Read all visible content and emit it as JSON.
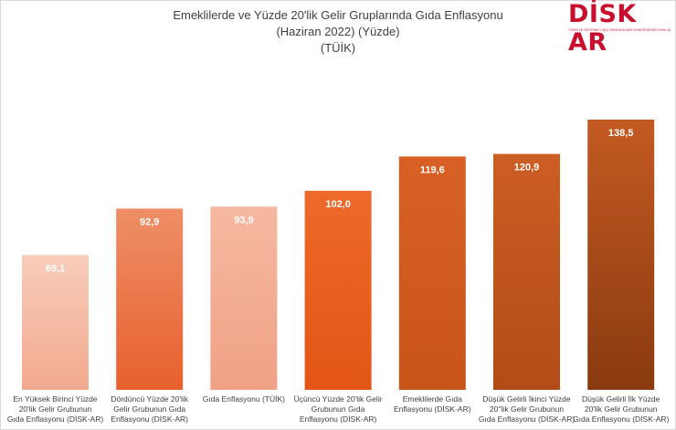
{
  "title_lines": [
    "Emeklilerde ve Yüzde 20'lik Gelir Gruplarında Gıda Enflasyonu",
    "(Haziran 2022) (Yüzde)",
    "(TÜİK)"
  ],
  "logo": {
    "word": "DİSK AR",
    "tagline": "TÜRKİYE DEVRİMCİ İŞÇİ SENDİKALARI KONFEDERASYONU ARAŞTIRMA MERKEZİ"
  },
  "chart_data": {
    "type": "bar",
    "title": "Emeklilerde ve Yüzde 20'lik Gelir Gruplarında Gıda Enflasyonu (Haziran 2022) (Yüzde) (TÜİK)",
    "categories": [
      "En Yüksek Birinci Yüzde 20'lik Gelir Grubunun Gıda Enflasyonu (DİSK-AR)",
      "Dördüncü Yüzde 20'lik Gelir Grubunun Gıda Enflasyonu (DİSK-AR)",
      "Gıda Enflasyonu (TÜİK)",
      "Üçüncü Yüzde 20'lik Gelir Grubunun Gıda Enflasyonu (DİSK-AR)",
      "Emeklilerde Gıda Enflasyonu (DİSK-AR)",
      "Düşük Gelirli İkinci Yüzde 20''lik Gelir Grubunun Gıda Enflasyonu (DİSK-AR)",
      "Düşük Gelirli İlk Yüzde 20'lik Gelir Grubunun Gıda Enflasyonu (DİSK-AR)"
    ],
    "category_lines": [
      [
        "En Yüksek Birinci Yüzde",
        "20'lik Gelir Grubunun",
        "Gıda Enflasyonu (DİSK-AR)"
      ],
      [
        "Dördüncü Yüzde 20'lik",
        "Gelir Grubunun Gıda",
        "Enflasyonu (DİSK-AR)"
      ],
      [
        "Gıda Enflasyonu (TÜİK)"
      ],
      [
        "Üçüncü Yüzde 20'lik Gelir",
        "Grubunun Gıda",
        "Enflasyonu (DİSK-AR)"
      ],
      [
        "Emeklilerde Gıda",
        "Enflasyonu (DİSK-AR)"
      ],
      [
        "Düşük Gelirli İkinci Yüzde",
        "20''lik Gelir Grubunun",
        "Gıda Enflasyonu (DİSK-AR)"
      ],
      [
        "Düşük Gelirli İlk Yüzde",
        "20'lik Gelir Grubunun",
        "Gıda Enflasyonu (DİSK-AR)"
      ]
    ],
    "values": [
      69.1,
      92.9,
      93.9,
      102.0,
      119.6,
      120.9,
      138.5
    ],
    "value_labels": [
      "69,1",
      "92,9",
      "93,9",
      "102,0",
      "119,6",
      "120,9",
      "138,5"
    ],
    "colors": [
      [
        "#f8cdbb",
        "#f2a98e"
      ],
      [
        "#ee8e66",
        "#e8602e"
      ],
      [
        "#f5b9a0",
        "#f0a185"
      ],
      [
        "#ee6a2a",
        "#e25515"
      ],
      [
        "#d86025",
        "#c9541a"
      ],
      [
        "#cc5e24",
        "#b24c16"
      ],
      [
        "#c35a22",
        "#8a3a10"
      ]
    ],
    "ylim": [
      0,
      160
    ],
    "grid": false,
    "legend": "none"
  }
}
